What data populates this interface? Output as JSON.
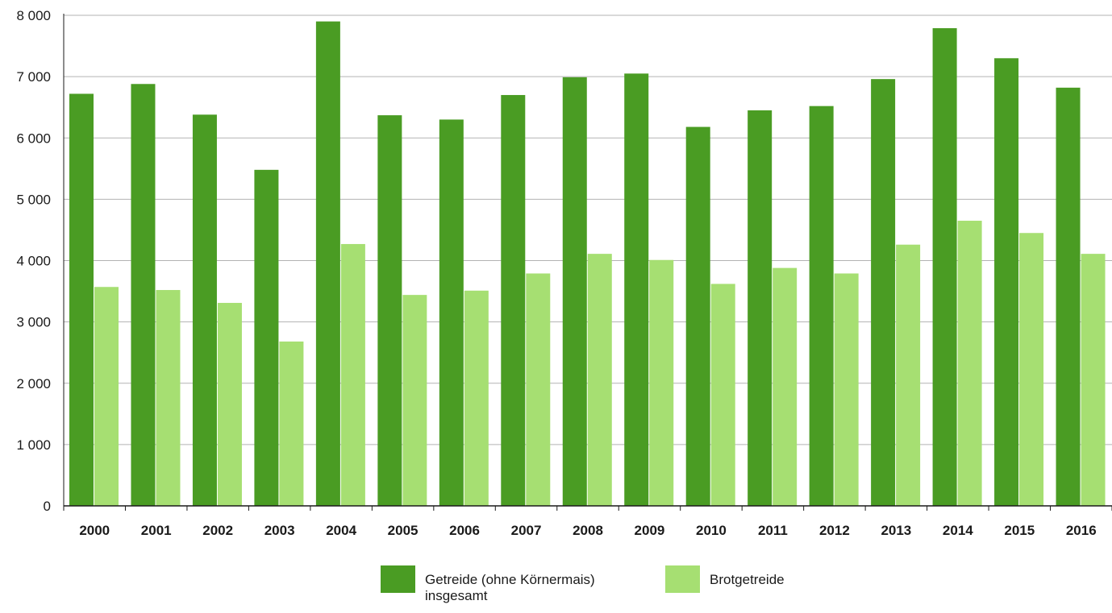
{
  "chart_data": {
    "type": "bar",
    "categories": [
      "2000",
      "2001",
      "2002",
      "2003",
      "2004",
      "2005",
      "2006",
      "2007",
      "2008",
      "2009",
      "2010",
      "2011",
      "2012",
      "2013",
      "2014",
      "2015",
      "2016"
    ],
    "series": [
      {
        "name": "Getreide (ohne Körnermais) insgesamt",
        "name_lines": [
          "Getreide (ohne Körnermais)",
          "insgesamt"
        ],
        "color": "#4a9c23",
        "values": [
          6720,
          6880,
          6380,
          5480,
          7900,
          6370,
          6300,
          6700,
          6990,
          7050,
          6180,
          6450,
          6520,
          6960,
          7790,
          7300,
          6820
        ]
      },
      {
        "name": "Brotgetreide",
        "name_lines": [
          "Brotgetreide"
        ],
        "color": "#a6df72",
        "values": [
          3570,
          3520,
          3310,
          2680,
          4270,
          3440,
          3510,
          3790,
          4110,
          4010,
          3620,
          3880,
          3790,
          4260,
          4650,
          4450,
          4110
        ]
      }
    ],
    "ylim": [
      0,
      8000
    ],
    "yticks": [
      0,
      1000,
      2000,
      3000,
      4000,
      5000,
      6000,
      7000,
      8000
    ],
    "ytick_labels": [
      "0",
      "1 000",
      "2 000",
      "3 000",
      "4 000",
      "5 000",
      "6 000",
      "7 000",
      "8 000"
    ],
    "grid": true,
    "legend_position": "bottom-center",
    "title": "",
    "xlabel": "",
    "ylabel": ""
  }
}
